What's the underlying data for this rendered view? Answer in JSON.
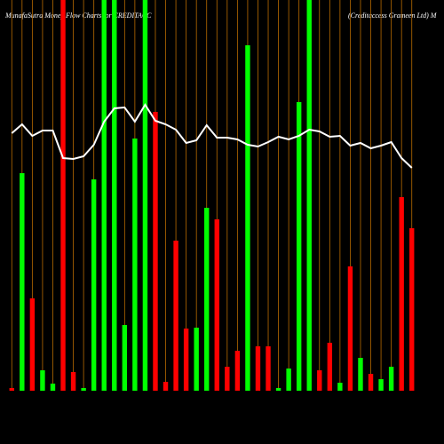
{
  "chart_data": {
    "type": "bar",
    "title": "MunafaSutra  Money Flow  Charts for CREDITACC",
    "subtitle": "(Creditaccess Grameen  Ltd) M",
    "categories": [
      null,
      null,
      null,
      null,
      null,
      null,
      null,
      null,
      null,
      null,
      null,
      null,
      null,
      null,
      null,
      null,
      null,
      null,
      null,
      null,
      null,
      null,
      null,
      null,
      null,
      null,
      null,
      null,
      null,
      null,
      null,
      null,
      null,
      null,
      null,
      null,
      null,
      null,
      null,
      null
    ],
    "values": [
      3,
      245,
      104,
      23,
      8,
      440,
      21,
      3,
      238,
      440,
      440,
      74,
      284,
      440,
      314,
      10,
      169,
      70,
      71,
      206,
      193,
      27,
      45,
      389,
      50,
      50,
      3,
      25,
      325,
      440,
      23,
      54,
      9,
      140,
      37,
      19,
      13,
      27,
      218,
      183
    ],
    "colors": [
      "#ff0000",
      "#00ff00",
      "#ff0000",
      "#00ff00",
      "#00ff00",
      "#ff0000",
      "#ff0000",
      "#00ff00",
      "#00ff00",
      "#00ff00",
      "#00ff00",
      "#00ff00",
      "#00ff00",
      "#00ff00",
      "#ff0000",
      "#ff0000",
      "#ff0000",
      "#ff0000",
      "#00ff00",
      "#00ff00",
      "#ff0000",
      "#ff0000",
      "#ff0000",
      "#00ff00",
      "#ff0000",
      "#ff0000",
      "#00ff00",
      "#00ff00",
      "#00ff00",
      "#00ff00",
      "#ff0000",
      "#ff0000",
      "#00ff00",
      "#ff0000",
      "#00ff00",
      "#ff0000",
      "#00ff00",
      "#00ff00",
      "#ff0000",
      "#ff0000"
    ],
    "line_values": [
      290,
      300,
      287,
      293,
      293,
      262,
      261,
      264,
      277,
      303,
      318,
      319,
      303,
      322,
      304,
      300,
      294,
      279,
      282,
      299,
      285,
      285,
      283,
      277,
      275,
      280,
      286,
      283,
      287,
      294,
      292,
      286,
      287,
      276,
      279,
      273,
      276,
      280,
      262,
      251
    ],
    "line_color": "#ffffff",
    "grid_color": "#b86b00",
    "ylim": [
      0,
      440
    ]
  }
}
